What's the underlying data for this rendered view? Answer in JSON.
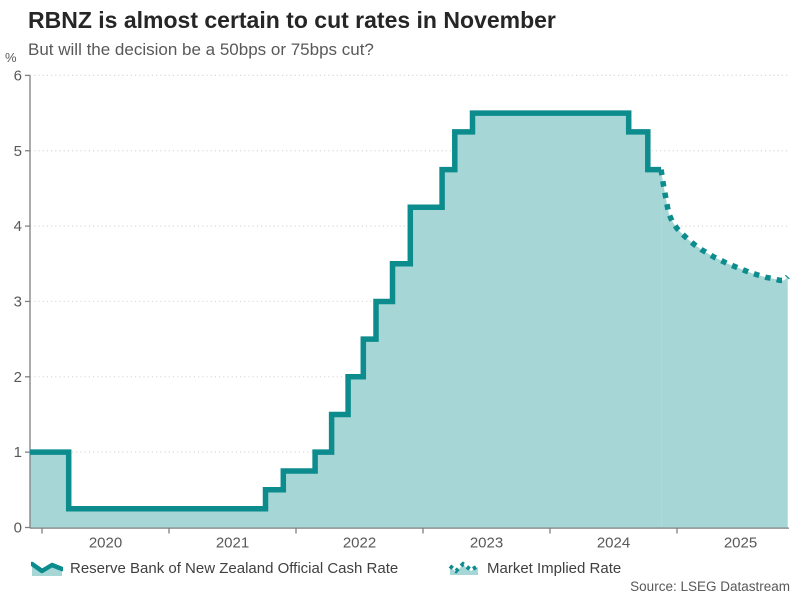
{
  "chart_data": {
    "type": "area",
    "title": "RBNZ is almost certain to cut rates in November",
    "subtitle": "But will the decision be a 50bps or 75bps cut?",
    "xlabel": "",
    "ylabel": "%",
    "ylim": [
      0,
      6
    ],
    "y_ticks": [
      0,
      1,
      2,
      3,
      4,
      5,
      6
    ],
    "x_ticks_years": [
      2020,
      2021,
      2022,
      2023,
      2024,
      2025
    ],
    "x_range": [
      2019.905,
      2025.875
    ],
    "grid": "dotted horizontal gridlines at integers",
    "legend_position": "bottom",
    "colors": {
      "line": "#0d8c8e",
      "fill": "#a6d6d6",
      "axis": "#808080",
      "grid": "#d9d9d9"
    },
    "series": [
      {
        "name": "Reserve Bank of New Zealand Official Cash Rate",
        "style": "step-after solid line with area fill",
        "points": [
          [
            2019.905,
            1.0
          ],
          [
            2020.21,
            0.25
          ],
          [
            2021.76,
            0.5
          ],
          [
            2021.9,
            0.75
          ],
          [
            2022.15,
            1.0
          ],
          [
            2022.28,
            1.5
          ],
          [
            2022.41,
            2.0
          ],
          [
            2022.53,
            2.5
          ],
          [
            2022.63,
            3.0
          ],
          [
            2022.76,
            3.5
          ],
          [
            2022.9,
            4.25
          ],
          [
            2023.15,
            4.75
          ],
          [
            2023.25,
            5.25
          ],
          [
            2023.39,
            5.5
          ],
          [
            2024.62,
            5.25
          ],
          [
            2024.77,
            4.75
          ],
          [
            2024.875,
            4.75
          ]
        ]
      },
      {
        "name": "Market Implied Rate",
        "style": "dotted line with area fill (forecast)",
        "points": [
          [
            2024.875,
            4.75
          ],
          [
            2024.89,
            4.58
          ],
          [
            2024.905,
            4.44
          ],
          [
            2024.92,
            4.3
          ],
          [
            2024.935,
            4.17
          ],
          [
            2024.96,
            4.07
          ],
          [
            2025.0,
            3.97
          ],
          [
            2025.045,
            3.89
          ],
          [
            2025.09,
            3.82
          ],
          [
            2025.14,
            3.75
          ],
          [
            2025.19,
            3.69
          ],
          [
            2025.24,
            3.64
          ],
          [
            2025.29,
            3.59
          ],
          [
            2025.34,
            3.55
          ],
          [
            2025.4,
            3.5
          ],
          [
            2025.46,
            3.46
          ],
          [
            2025.52,
            3.42
          ],
          [
            2025.58,
            3.38
          ],
          [
            2025.64,
            3.35
          ],
          [
            2025.7,
            3.32
          ],
          [
            2025.76,
            3.3
          ],
          [
            2025.81,
            3.28
          ],
          [
            2025.845,
            3.28
          ],
          [
            2025.872,
            3.33
          ]
        ]
      }
    ]
  },
  "source": "Source: LSEG Datastream"
}
